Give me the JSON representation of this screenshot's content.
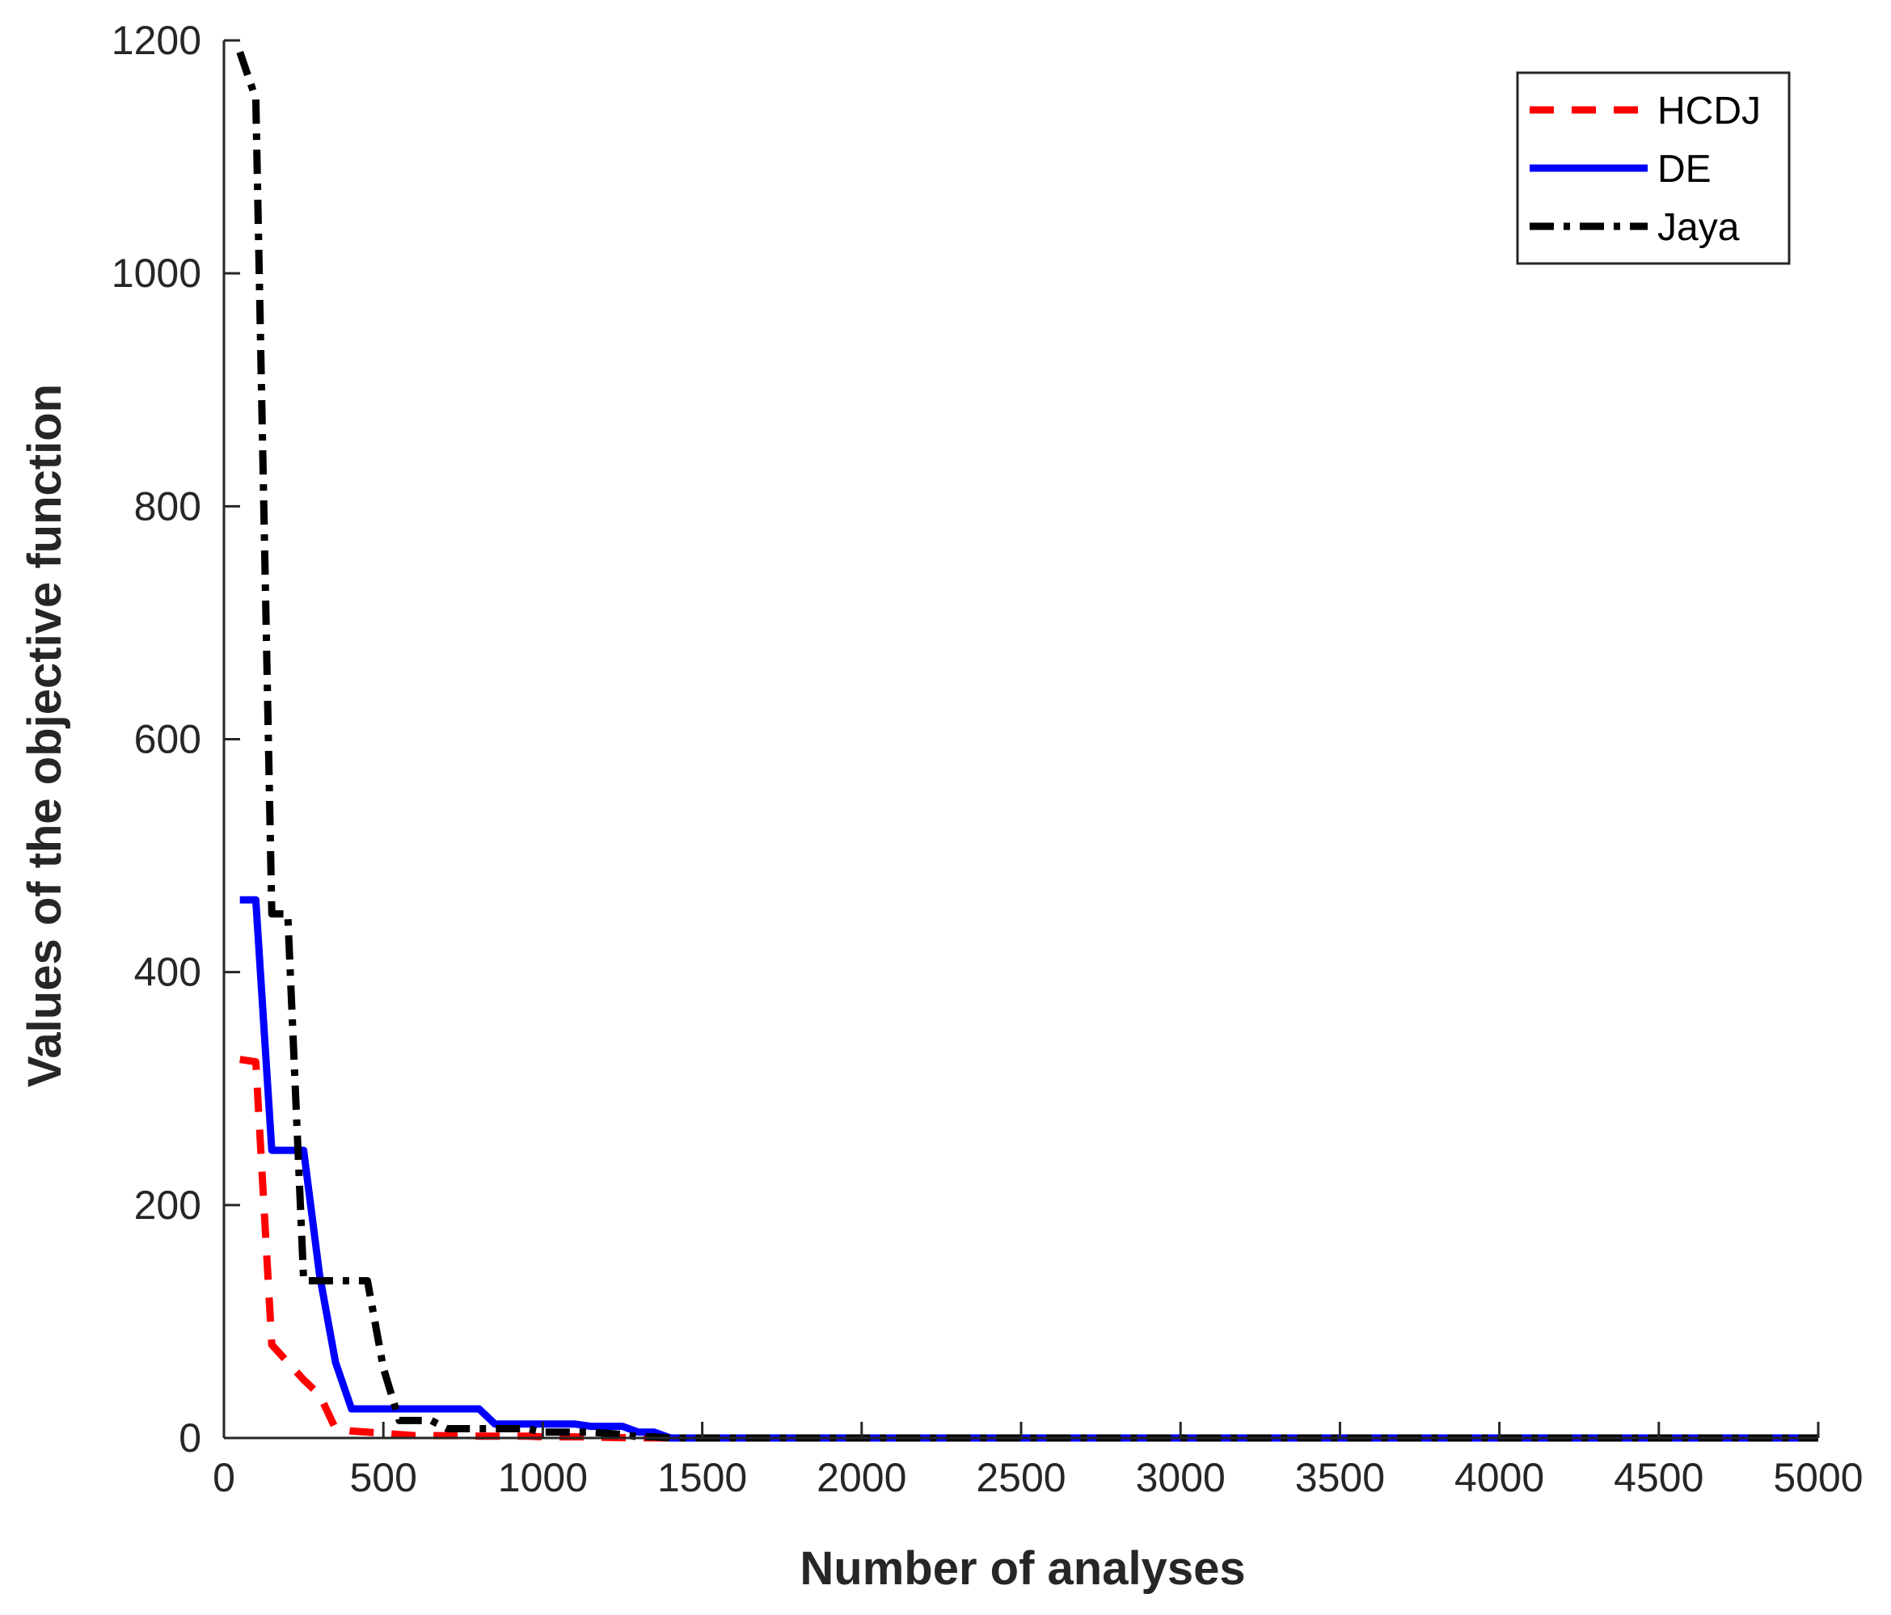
{
  "chart_data": {
    "type": "line",
    "title": "",
    "xlabel": "Number of analyses",
    "ylabel": "Values of the objective function",
    "xlim": [
      0,
      5000
    ],
    "ylim": [
      0,
      1200
    ],
    "x_ticks": [
      0,
      500,
      1000,
      1500,
      2000,
      2500,
      3000,
      3500,
      4000,
      4500,
      5000
    ],
    "y_ticks": [
      0,
      200,
      400,
      600,
      800,
      1000,
      1200
    ],
    "x_tick_labels": [
      "0",
      "500",
      "1000",
      "1500",
      "2000",
      "2500",
      "3000",
      "3500",
      "4000",
      "4500",
      "5000"
    ],
    "y_tick_labels": [
      "0",
      "200",
      "400",
      "600",
      "800",
      "1000",
      "1200"
    ],
    "grid": false,
    "legend_position": "top-right",
    "series": [
      {
        "name": "HCDJ",
        "color": "#ff0000",
        "style": "dashed",
        "x": [
          50,
          100,
          150,
          200,
          250,
          300,
          350,
          400,
          450,
          500,
          550,
          600,
          650,
          700,
          750,
          800,
          850,
          900,
          950,
          1000,
          1050,
          1100,
          1150,
          1200,
          1250,
          1300,
          1350,
          1400,
          5000
        ],
        "y": [
          325,
          323,
          80,
          65,
          50,
          37,
          8,
          6,
          5,
          4,
          3,
          2,
          2,
          2,
          2,
          1.5,
          1.5,
          1.5,
          1.5,
          1,
          1,
          1,
          1,
          0.5,
          0.3,
          0.2,
          0.1,
          0,
          0
        ]
      },
      {
        "name": "DE",
        "color": "#0000ff",
        "style": "solid",
        "x": [
          50,
          100,
          150,
          200,
          250,
          300,
          350,
          400,
          450,
          500,
          550,
          600,
          650,
          700,
          750,
          800,
          850,
          900,
          950,
          1000,
          1050,
          1100,
          1150,
          1200,
          1250,
          1300,
          1350,
          1400,
          1450,
          5000
        ],
        "y": [
          462,
          462,
          247,
          247,
          247,
          140,
          65,
          25,
          25,
          25,
          25,
          25,
          25,
          25,
          25,
          25,
          12,
          12,
          12,
          12,
          12,
          12,
          10,
          10,
          10,
          5,
          5,
          0,
          0,
          0
        ]
      },
      {
        "name": "Jaya",
        "color": "#000000",
        "style": "dashdot",
        "x": [
          50,
          100,
          150,
          200,
          250,
          300,
          350,
          400,
          450,
          500,
          550,
          600,
          650,
          700,
          750,
          800,
          850,
          900,
          950,
          1000,
          1050,
          1100,
          1150,
          1200,
          1250,
          1300,
          1350,
          1400,
          5000
        ],
        "y": [
          1190,
          1150,
          450,
          450,
          135,
          135,
          135,
          135,
          135,
          60,
          15,
          15,
          15,
          8,
          8,
          8,
          8,
          8,
          8,
          5,
          5,
          5,
          5,
          4,
          3,
          1,
          1,
          0,
          0
        ]
      }
    ]
  }
}
